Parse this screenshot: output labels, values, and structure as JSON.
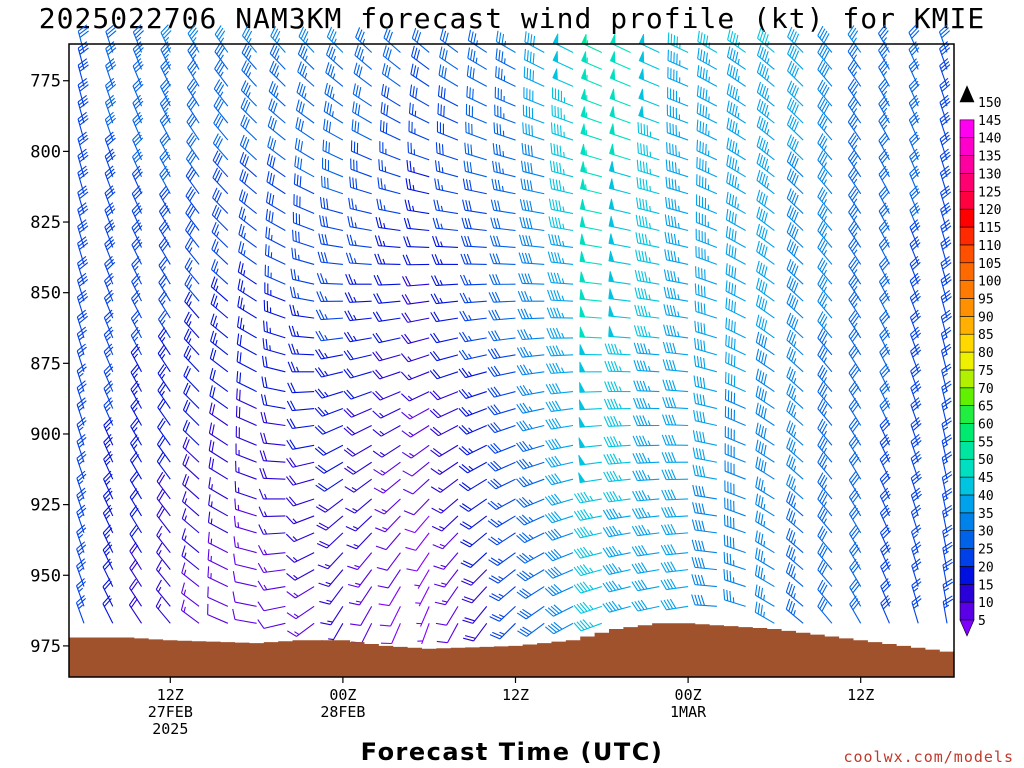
{
  "chart_data": {
    "type": "wind-barb-time-height",
    "title": "2025022706 NAM3KM forecast wind profile (kt) for KMIE",
    "xlabel": "Forecast Time (UTC)",
    "y_axis": {
      "label": "",
      "ticks": [
        775,
        800,
        825,
        850,
        875,
        900,
        925,
        950,
        975
      ],
      "range": [
        762,
        986
      ],
      "direction": "pressure increasing downward"
    },
    "x_axis": {
      "time_range": [
        "2025-02-27 06Z",
        "2025-03-01 18Z"
      ],
      "ticks": [
        {
          "time": "2025-02-27 12Z",
          "lines": [
            "12Z",
            "27FEB",
            "2025"
          ]
        },
        {
          "time": "2025-02-28 00Z",
          "lines": [
            "00Z",
            "28FEB"
          ]
        },
        {
          "time": "2025-02-28 12Z",
          "lines": [
            "12Z"
          ]
        },
        {
          "time": "2025-03-01 00Z",
          "lines": [
            "00Z",
            "1MAR"
          ]
        },
        {
          "time": "2025-03-01 12Z",
          "lines": [
            "12Z"
          ]
        }
      ]
    },
    "colorbar": {
      "units": "kt",
      "levels": [
        5,
        10,
        15,
        20,
        25,
        30,
        35,
        40,
        45,
        50,
        55,
        60,
        65,
        70,
        75,
        80,
        85,
        90,
        95,
        100,
        105,
        110,
        115,
        120,
        125,
        130,
        135,
        140,
        145,
        150
      ],
      "colors": [
        "#8000ff",
        "#5a00e6",
        "#2a00d8",
        "#0010e0",
        "#0040e8",
        "#0062e8",
        "#0082ea",
        "#00a2ec",
        "#00c4e0",
        "#00e0c0",
        "#00e6a0",
        "#00ea70",
        "#20ee40",
        "#60f000",
        "#b0f000",
        "#eef000",
        "#ffd800",
        "#ffb000",
        "#ff9000",
        "#ff7a00",
        "#ff6a00",
        "#ff5000",
        "#ff2a00",
        "#ff0000",
        "#ff0040",
        "#ff0070",
        "#ff00a0",
        "#ff00cc",
        "#ff00f0",
        "#ff40ff"
      ]
    },
    "wind_columns_utc_hours": "hourly, 2025-02-27 06Z through 2025-03-01 18Z (61 columns)",
    "wind_levels_hpa": [
      765,
      771,
      777,
      784,
      790,
      796,
      803,
      809,
      815,
      822,
      828,
      834,
      840,
      847,
      853,
      859,
      866,
      872,
      878,
      885,
      891,
      897,
      904,
      910,
      916,
      923,
      929,
      935,
      942,
      948,
      954,
      961,
      967
    ],
    "wind_phases": [
      {
        "time": "2025-02-27 06Z",
        "lower_dir_deg": 340,
        "lower_speed_kt": 25,
        "upper_dir_deg": 345,
        "upper_speed_kt": 30
      },
      {
        "time": "2025-02-27 12Z",
        "lower_dir_deg": 320,
        "lower_speed_kt": 15,
        "upper_dir_deg": 335,
        "upper_speed_kt": 35
      },
      {
        "time": "2025-02-27 18Z",
        "lower_dir_deg": 280,
        "lower_speed_kt": 10,
        "upper_dir_deg": 320,
        "upper_speed_kt": 35
      },
      {
        "time": "2025-02-28 00Z",
        "lower_dir_deg": 210,
        "lower_speed_kt": 15,
        "upper_dir_deg": 315,
        "upper_speed_kt": 35
      },
      {
        "time": "2025-02-28 06Z",
        "lower_dir_deg": 200,
        "lower_speed_kt": 5,
        "upper_dir_deg": 310,
        "upper_speed_kt": 30
      },
      {
        "time": "2025-02-28 12Z",
        "lower_dir_deg": 225,
        "lower_speed_kt": 25,
        "upper_dir_deg": 300,
        "upper_speed_kt": 35
      },
      {
        "time": "2025-02-28 18Z",
        "lower_dir_deg": 250,
        "lower_speed_kt": 45,
        "upper_dir_deg": 295,
        "upper_speed_kt": 55
      },
      {
        "time": "2025-03-01 00Z",
        "lower_dir_deg": 260,
        "lower_speed_kt": 40,
        "upper_dir_deg": 295,
        "upper_speed_kt": 45
      },
      {
        "time": "2025-03-01 06Z",
        "lower_dir_deg": 300,
        "lower_speed_kt": 35,
        "upper_dir_deg": 310,
        "upper_speed_kt": 45
      },
      {
        "time": "2025-03-01 12Z",
        "lower_dir_deg": 330,
        "lower_speed_kt": 30,
        "upper_dir_deg": 325,
        "upper_speed_kt": 35
      },
      {
        "time": "2025-03-01 18Z",
        "lower_dir_deg": 350,
        "lower_speed_kt": 25,
        "upper_dir_deg": 340,
        "upper_speed_kt": 30
      }
    ],
    "surface_pressure_hpa": [
      {
        "time": "2025-02-27 06Z",
        "p": 972
      },
      {
        "time": "2025-02-27 09Z",
        "p": 972
      },
      {
        "time": "2025-02-27 12Z",
        "p": 973
      },
      {
        "time": "2025-02-27 18Z",
        "p": 974
      },
      {
        "time": "2025-02-27 21Z",
        "p": 973
      },
      {
        "time": "2025-02-28 00Z",
        "p": 973
      },
      {
        "time": "2025-02-28 03Z",
        "p": 975
      },
      {
        "time": "2025-02-28 06Z",
        "p": 976
      },
      {
        "time": "2025-02-28 12Z",
        "p": 975
      },
      {
        "time": "2025-02-28 16Z",
        "p": 973
      },
      {
        "time": "2025-02-28 19Z",
        "p": 969
      },
      {
        "time": "2025-02-28 22Z",
        "p": 967
      },
      {
        "time": "2025-03-01 00Z",
        "p": 967
      },
      {
        "time": "2025-03-01 06Z",
        "p": 969
      },
      {
        "time": "2025-03-01 09Z",
        "p": 971
      },
      {
        "time": "2025-03-01 12Z",
        "p": 973
      },
      {
        "time": "2025-03-01 15Z",
        "p": 975
      },
      {
        "time": "2025-03-01 18Z",
        "p": 977
      }
    ],
    "surface_color": "#a0522d",
    "credit": "coolwx.com/models"
  }
}
